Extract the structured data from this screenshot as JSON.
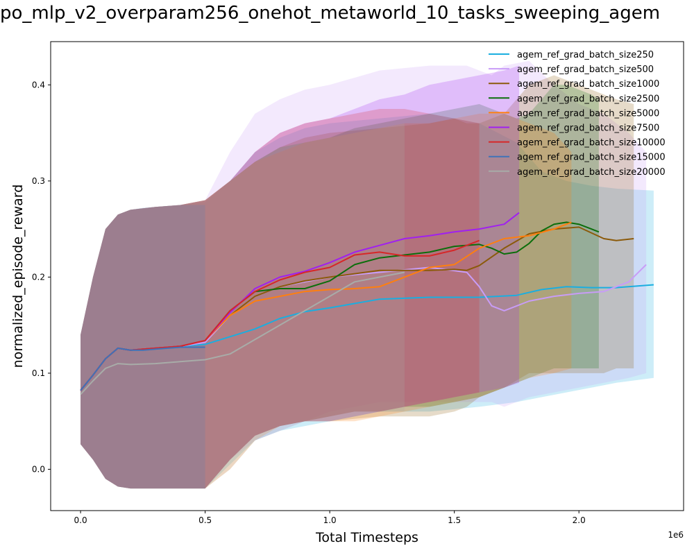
{
  "chart_data": {
    "type": "line",
    "title": "po_mlp_v2_overparam256_onehot_metaworld_10_tasks_sweeping_agem",
    "xlabel": "Total Timesteps",
    "ylabel": "normalized_episode_reward",
    "x_scale_label": "1e6",
    "xlim": [
      -0.12,
      2.42
    ],
    "ylim": [
      -0.043,
      0.445
    ],
    "x_ticks": [
      0.0,
      0.5,
      1.0,
      1.5,
      2.0
    ],
    "x_tick_labels": [
      "0.0",
      "0.5",
      "1.0",
      "1.5",
      "2.0"
    ],
    "y_ticks": [
      0.0,
      0.1,
      0.2,
      0.3,
      0.4
    ],
    "y_tick_labels": [
      "0.0",
      "0.1",
      "0.2",
      "0.3",
      "0.4"
    ],
    "grid": false,
    "legend_position": "top-right",
    "shaded_band_opacity": 0.22,
    "series": [
      {
        "name": "agem_ref_grad_batch_size250",
        "color": "#1aaee0",
        "x": [
          0.0,
          0.05,
          0.1,
          0.15,
          0.2,
          0.3,
          0.4,
          0.5,
          0.6,
          0.7,
          0.8,
          0.9,
          1.0,
          1.2,
          1.4,
          1.6,
          1.75,
          1.85,
          1.95,
          2.05,
          2.15,
          2.3
        ],
        "y": [
          0.082,
          0.098,
          0.115,
          0.126,
          0.124,
          0.126,
          0.128,
          0.13,
          0.138,
          0.146,
          0.157,
          0.164,
          0.168,
          0.177,
          0.179,
          0.179,
          0.181,
          0.187,
          0.19,
          0.189,
          0.189,
          0.192
        ],
        "lower": [
          0.026,
          0.01,
          -0.01,
          -0.018,
          -0.02,
          -0.02,
          -0.02,
          -0.02,
          0.005,
          0.03,
          0.04,
          0.045,
          0.05,
          0.06,
          0.06,
          0.065,
          0.07,
          0.075,
          0.08,
          0.085,
          0.09,
          0.095
        ],
        "upper": [
          0.14,
          0.2,
          0.25,
          0.265,
          0.27,
          0.273,
          0.275,
          0.278,
          0.3,
          0.33,
          0.345,
          0.355,
          0.36,
          0.365,
          0.37,
          0.36,
          0.34,
          0.31,
          0.3,
          0.295,
          0.292,
          0.29
        ]
      },
      {
        "name": "agem_ref_grad_batch_size500",
        "color": "#c89cf7",
        "x": [
          0.0,
          0.05,
          0.1,
          0.15,
          0.2,
          0.3,
          0.4,
          0.5,
          0.6,
          0.7,
          0.8,
          0.9,
          1.0,
          1.2,
          1.4,
          1.55,
          1.6,
          1.65,
          1.7,
          1.8,
          1.9,
          2.0,
          2.1,
          2.2,
          2.27
        ],
        "y": [
          0.082,
          0.098,
          0.115,
          0.126,
          0.124,
          0.126,
          0.128,
          0.132,
          0.16,
          0.18,
          0.19,
          0.195,
          0.2,
          0.205,
          0.21,
          0.205,
          0.19,
          0.17,
          0.165,
          0.175,
          0.18,
          0.183,
          0.185,
          0.195,
          0.213
        ],
        "lower": [
          0.026,
          0.01,
          -0.01,
          -0.018,
          -0.02,
          -0.02,
          -0.02,
          -0.02,
          0.01,
          0.03,
          0.04,
          0.05,
          0.06,
          0.07,
          0.07,
          0.07,
          0.07,
          0.07,
          0.065,
          0.075,
          0.08,
          0.085,
          0.09,
          0.095,
          0.1
        ],
        "upper": [
          0.14,
          0.2,
          0.25,
          0.265,
          0.27,
          0.273,
          0.275,
          0.28,
          0.33,
          0.37,
          0.385,
          0.395,
          0.4,
          0.415,
          0.42,
          0.42,
          0.415,
          0.41,
          0.42,
          0.425,
          0.4,
          0.38,
          0.37,
          0.35,
          0.33
        ]
      },
      {
        "name": "agem_ref_grad_batch_size1000",
        "color": "#8b5a0a",
        "x": [
          0.0,
          0.05,
          0.1,
          0.15,
          0.2,
          0.3,
          0.4,
          0.5,
          0.6,
          0.7,
          0.8,
          0.9,
          1.0,
          1.2,
          1.4,
          1.5,
          1.55,
          1.6,
          1.7,
          1.8,
          1.9,
          2.0,
          2.1,
          2.15,
          2.22
        ],
        "y": [
          0.082,
          0.098,
          0.115,
          0.126,
          0.124,
          0.126,
          0.128,
          0.134,
          0.16,
          0.18,
          0.19,
          0.196,
          0.2,
          0.207,
          0.207,
          0.208,
          0.207,
          0.212,
          0.23,
          0.245,
          0.25,
          0.252,
          0.24,
          0.238,
          0.24
        ],
        "lower": [
          0.026,
          0.01,
          -0.01,
          -0.018,
          -0.02,
          -0.02,
          -0.02,
          -0.02,
          0.01,
          0.035,
          0.045,
          0.05,
          0.05,
          0.055,
          0.055,
          0.06,
          0.065,
          0.075,
          0.085,
          0.1,
          0.1,
          0.1,
          0.1,
          0.105,
          0.105
        ],
        "upper": [
          0.14,
          0.2,
          0.25,
          0.265,
          0.27,
          0.273,
          0.275,
          0.28,
          0.3,
          0.32,
          0.335,
          0.345,
          0.35,
          0.355,
          0.36,
          0.365,
          0.36,
          0.36,
          0.37,
          0.4,
          0.41,
          0.4,
          0.39,
          0.385,
          0.38
        ]
      },
      {
        "name": "agem_ref_grad_batch_size2500",
        "color": "#0b6e0b",
        "x": [
          0.0,
          0.05,
          0.1,
          0.15,
          0.2,
          0.3,
          0.4,
          0.5,
          0.6,
          0.7,
          0.8,
          0.9,
          1.0,
          1.1,
          1.2,
          1.3,
          1.4,
          1.5,
          1.6,
          1.65,
          1.7,
          1.75,
          1.8,
          1.85,
          1.9,
          1.95,
          2.0,
          2.05,
          2.08
        ],
        "y": [
          0.082,
          0.098,
          0.115,
          0.126,
          0.124,
          0.126,
          0.128,
          0.134,
          0.165,
          0.185,
          0.188,
          0.188,
          0.196,
          0.213,
          0.22,
          0.223,
          0.226,
          0.232,
          0.234,
          0.23,
          0.224,
          0.226,
          0.235,
          0.248,
          0.255,
          0.257,
          0.255,
          0.25,
          0.247
        ],
        "lower": [
          0.026,
          0.01,
          -0.01,
          -0.018,
          -0.02,
          -0.02,
          -0.02,
          -0.02,
          0.01,
          0.035,
          0.045,
          0.05,
          0.055,
          0.06,
          0.06,
          0.065,
          0.065,
          0.07,
          0.075,
          0.08,
          0.085,
          0.09,
          0.095,
          0.1,
          0.105,
          0.105,
          0.105,
          0.105,
          0.105
        ],
        "upper": [
          0.14,
          0.2,
          0.25,
          0.265,
          0.27,
          0.273,
          0.275,
          0.28,
          0.3,
          0.32,
          0.335,
          0.34,
          0.345,
          0.355,
          0.36,
          0.365,
          0.37,
          0.375,
          0.38,
          0.375,
          0.37,
          0.365,
          0.37,
          0.385,
          0.4,
          0.4,
          0.395,
          0.39,
          0.385
        ]
      },
      {
        "name": "agem_ref_grad_batch_size5000",
        "color": "#ff7f0e",
        "x": [
          0.0,
          0.05,
          0.1,
          0.15,
          0.2,
          0.3,
          0.4,
          0.5,
          0.6,
          0.7,
          0.8,
          0.9,
          1.0,
          1.1,
          1.2,
          1.3,
          1.4,
          1.5,
          1.6,
          1.7,
          1.8,
          1.9,
          1.97
        ],
        "y": [
          0.082,
          0.098,
          0.115,
          0.126,
          0.124,
          0.126,
          0.128,
          0.134,
          0.16,
          0.175,
          0.18,
          0.185,
          0.187,
          0.188,
          0.19,
          0.2,
          0.21,
          0.213,
          0.23,
          0.24,
          0.243,
          0.25,
          0.257
        ],
        "lower": [
          0.026,
          0.01,
          -0.01,
          -0.018,
          -0.02,
          -0.02,
          -0.02,
          -0.02,
          0.0,
          0.03,
          0.045,
          0.05,
          0.05,
          0.05,
          0.055,
          0.06,
          0.065,
          0.07,
          0.075,
          0.085,
          0.095,
          0.1,
          0.105
        ],
        "upper": [
          0.14,
          0.2,
          0.25,
          0.265,
          0.27,
          0.273,
          0.275,
          0.28,
          0.3,
          0.32,
          0.33,
          0.34,
          0.345,
          0.35,
          0.355,
          0.36,
          0.36,
          0.365,
          0.37,
          0.37,
          0.36,
          0.35,
          0.33
        ]
      },
      {
        "name": "agem_ref_grad_batch_size7500",
        "color": "#a020f0",
        "x": [
          0.0,
          0.05,
          0.1,
          0.15,
          0.2,
          0.3,
          0.4,
          0.5,
          0.6,
          0.7,
          0.8,
          0.9,
          1.0,
          1.1,
          1.2,
          1.3,
          1.4,
          1.5,
          1.6,
          1.7,
          1.76
        ],
        "y": [
          0.082,
          0.098,
          0.115,
          0.126,
          0.124,
          0.126,
          0.128,
          0.134,
          0.163,
          0.188,
          0.2,
          0.206,
          0.215,
          0.226,
          0.233,
          0.24,
          0.243,
          0.247,
          0.25,
          0.255,
          0.267
        ],
        "lower": [
          0.026,
          0.01,
          -0.01,
          -0.018,
          -0.02,
          -0.02,
          -0.02,
          -0.02,
          0.01,
          0.035,
          0.045,
          0.05,
          0.05,
          0.055,
          0.06,
          0.065,
          0.07,
          0.075,
          0.08,
          0.085,
          0.09
        ],
        "upper": [
          0.14,
          0.2,
          0.25,
          0.265,
          0.27,
          0.273,
          0.275,
          0.28,
          0.3,
          0.33,
          0.35,
          0.36,
          0.365,
          0.375,
          0.385,
          0.39,
          0.4,
          0.405,
          0.41,
          0.415,
          0.42
        ]
      },
      {
        "name": "agem_ref_grad_batch_size10000",
        "color": "#d62728",
        "x": [
          0.0,
          0.05,
          0.1,
          0.15,
          0.2,
          0.3,
          0.4,
          0.5,
          0.6,
          0.7,
          0.8,
          0.9,
          1.0,
          1.1,
          1.2,
          1.3,
          1.4,
          1.5,
          1.6
        ],
        "y": [
          0.082,
          0.098,
          0.115,
          0.126,
          0.124,
          0.126,
          0.128,
          0.134,
          0.165,
          0.185,
          0.197,
          0.205,
          0.21,
          0.223,
          0.226,
          0.222,
          0.222,
          0.228,
          0.238
        ],
        "lower": [
          0.026,
          0.01,
          -0.01,
          -0.018,
          -0.02,
          -0.02,
          -0.02,
          -0.02,
          0.01,
          0.035,
          0.045,
          0.05,
          0.055,
          0.06,
          0.06,
          0.065,
          0.07,
          0.075,
          0.08
        ],
        "upper": [
          0.14,
          0.2,
          0.25,
          0.265,
          0.27,
          0.273,
          0.275,
          0.28,
          0.3,
          0.33,
          0.35,
          0.36,
          0.365,
          0.37,
          0.375,
          0.375,
          0.37,
          0.365,
          0.36
        ]
      },
      {
        "name": "agem_ref_grad_batch_size15000",
        "color": "#3f72b8",
        "x": [
          0.0,
          0.05,
          0.1,
          0.15,
          0.2,
          0.25,
          0.3,
          0.35,
          0.4,
          0.45,
          0.5
        ],
        "y": [
          0.082,
          0.098,
          0.115,
          0.126,
          0.124,
          0.124,
          0.125,
          0.126,
          0.127,
          0.127,
          0.127
        ],
        "lower": [
          0.026,
          0.01,
          -0.01,
          -0.018,
          -0.02,
          -0.02,
          -0.02,
          -0.02,
          -0.02,
          -0.02,
          -0.02
        ],
        "upper": [
          0.14,
          0.2,
          0.25,
          0.265,
          0.27,
          0.272,
          0.273,
          0.274,
          0.275,
          0.275,
          0.275
        ]
      },
      {
        "name": "agem_ref_grad_batch_size20000",
        "color": "#a8aca8",
        "x": [
          0.0,
          0.05,
          0.1,
          0.15,
          0.2,
          0.3,
          0.4,
          0.5,
          0.6,
          0.7,
          0.8,
          0.9,
          1.0,
          1.1,
          1.2,
          1.3
        ],
        "y": [
          0.078,
          0.092,
          0.105,
          0.11,
          0.109,
          0.11,
          0.112,
          0.114,
          0.12,
          0.135,
          0.15,
          0.165,
          0.18,
          0.195,
          0.2,
          0.205
        ],
        "lower": [
          0.026,
          0.01,
          -0.01,
          -0.018,
          -0.02,
          -0.02,
          -0.02,
          -0.02,
          0.0,
          0.03,
          0.04,
          0.05,
          0.05,
          0.055,
          0.06,
          0.06
        ],
        "upper": [
          0.14,
          0.2,
          0.25,
          0.265,
          0.27,
          0.273,
          0.275,
          0.28,
          0.3,
          0.32,
          0.335,
          0.34,
          0.345,
          0.35,
          0.355,
          0.36
        ]
      }
    ]
  }
}
